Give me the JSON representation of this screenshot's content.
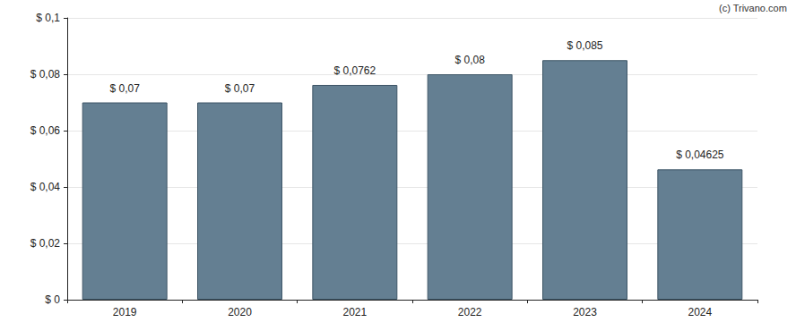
{
  "chart_data": {
    "type": "bar",
    "annotation": "(c) Trivano.com",
    "categories": [
      "2019",
      "2020",
      "2021",
      "2022",
      "2023",
      "2024"
    ],
    "values": [
      0.07,
      0.07,
      0.0762,
      0.08,
      0.085,
      0.04625
    ],
    "value_labels": [
      "$ 0,07",
      "$ 0,07",
      "$ 0,0762",
      "$ 0,08",
      "$ 0,085",
      "$ 0,04625"
    ],
    "color": "#647f92",
    "ylim": [
      0,
      0.1
    ],
    "yticks": [
      {
        "value": 0,
        "label": "$ 0"
      },
      {
        "value": 0.02,
        "label": "$ 0,02"
      },
      {
        "value": 0.04,
        "label": "$ 0,04"
      },
      {
        "value": 0.06,
        "label": "$ 0,06"
      },
      {
        "value": 0.08,
        "label": "$ 0,08"
      },
      {
        "value": 0.1,
        "label": "$ 0,1"
      }
    ],
    "grid": true,
    "data_labels": true
  }
}
